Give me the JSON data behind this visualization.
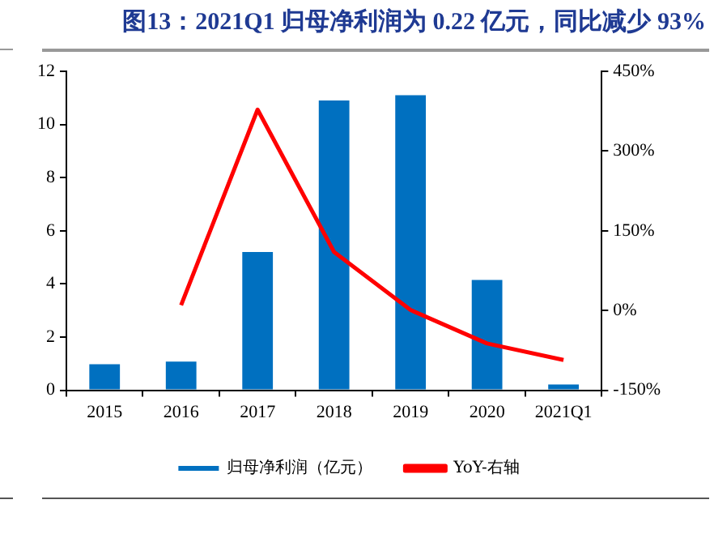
{
  "chart_data": {
    "type": "bar",
    "title": "图13：2021Q1 归母净利润为 0.22 亿元，同比减少 93%",
    "categories": [
      "2015",
      "2016",
      "2017",
      "2018",
      "2019",
      "2020",
      "2021Q1"
    ],
    "series": [
      {
        "name": "归母净利润（亿元）",
        "color": "#0070c0",
        "values": [
          0.98,
          1.08,
          5.2,
          10.9,
          11.1,
          4.15,
          0.22
        ]
      },
      {
        "name": "YoY-右轴",
        "type": "line",
        "axis": "y2",
        "color": "#ff0000",
        "values": [
          null,
          10,
          378,
          110,
          1,
          -62,
          -93
        ]
      }
    ],
    "ylim": [
      0,
      12
    ],
    "yticks": [
      0,
      2,
      4,
      6,
      8,
      10,
      12
    ],
    "y2lim": [
      -150,
      450
    ],
    "y2ticks": [
      {
        "value": -150,
        "label": "-150%"
      },
      {
        "value": 0,
        "label": "0%"
      },
      {
        "value": 150,
        "label": "150%"
      },
      {
        "value": 300,
        "label": "300%"
      },
      {
        "value": 450,
        "label": "450%"
      }
    ],
    "grid": false,
    "legend": "bottom",
    "marker": "none",
    "line_style": "solid"
  }
}
